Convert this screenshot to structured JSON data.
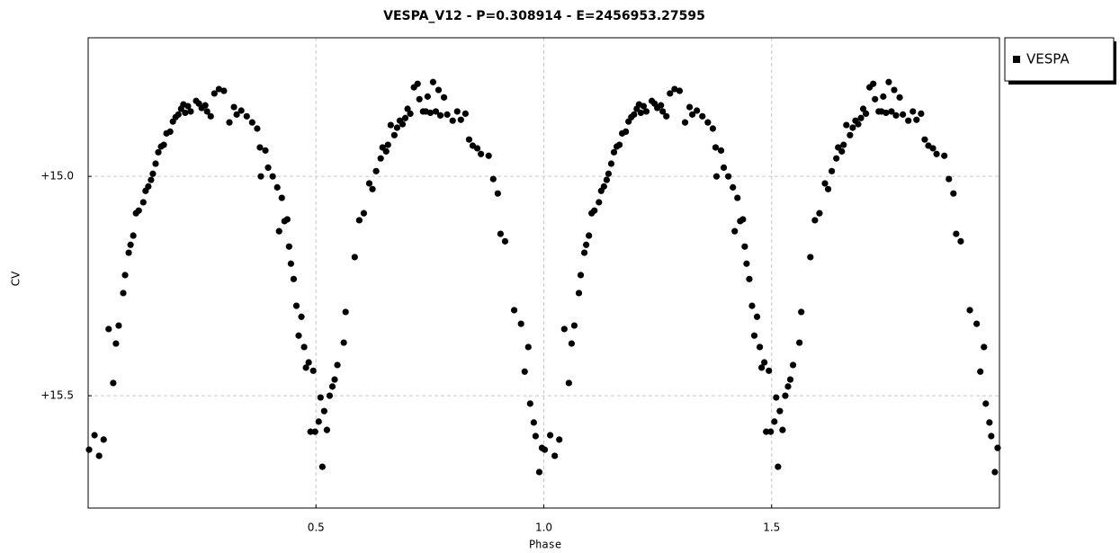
{
  "chart_data": {
    "type": "scatter",
    "title": "VESPA_V12  -  P=0.308914  -  E=2456953.27595",
    "xlabel": "Phase",
    "ylabel": "CV",
    "xlim": [
      0,
      2
    ],
    "ylim": [
      15.756,
      14.684
    ],
    "xticks": [
      0.5,
      {
        "value": 1,
        "label": "1.0"
      },
      1.5
    ],
    "yticks": [
      {
        "value": 15,
        "label": "+15.0"
      },
      {
        "value": 15.5,
        "label": "+15.5"
      }
    ],
    "grid": true,
    "legend": "right",
    "series": [
      {
        "name": "VESPA",
        "color": "#000000",
        "x": [
          0.002,
          0.014,
          0.024,
          0.034,
          0.045,
          0.055,
          0.061,
          0.067,
          0.077,
          0.081,
          0.089,
          0.093,
          0.099,
          0.105,
          0.111,
          0.121,
          0.126,
          0.132,
          0.138,
          0.142,
          0.148,
          0.154,
          0.16,
          0.166,
          0.172,
          0.18,
          0.186,
          0.192,
          0.198,
          0.204,
          0.209,
          0.213,
          0.219,
          0.225,
          0.237,
          0.243,
          0.249,
          0.257,
          0.261,
          0.269,
          0.277,
          0.287,
          0.298,
          0.31,
          0.32,
          0.326,
          0.336,
          0.348,
          0.36,
          0.371,
          0.377,
          0.379,
          0.389,
          0.395,
          0.405,
          0.415,
          0.419,
          0.425,
          0.431,
          0.437,
          0.441,
          0.445,
          0.451,
          0.457,
          0.462,
          0.468,
          0.474,
          0.478,
          0.484,
          0.488,
          0.494,
          0.498,
          0.506,
          0.51,
          0.514,
          0.518,
          0.524,
          0.53,
          0.536,
          0.541,
          0.547,
          0.561,
          0.565,
          0.585,
          0.595,
          0.605,
          0.617,
          0.624,
          0.632,
          0.642,
          0.646,
          0.654,
          0.658,
          0.664,
          0.672,
          0.678,
          0.684,
          0.69,
          0.696,
          0.701,
          0.707,
          0.715,
          0.723,
          0.727,
          0.735,
          0.741,
          0.745,
          0.751,
          0.757,
          0.763,
          0.769,
          0.773,
          0.781,
          0.788,
          0.8,
          0.81,
          0.818,
          0.828,
          0.836,
          0.844,
          0.854,
          0.862,
          0.879,
          0.889,
          0.899,
          0.905,
          0.915,
          0.935,
          0.95,
          0.958,
          0.966,
          0.97,
          0.978,
          0.982,
          0.99,
          0.996,
          1.002,
          1.014,
          1.024,
          1.034,
          1.045,
          1.055,
          1.061,
          1.067,
          1.077,
          1.081,
          1.089,
          1.093,
          1.099,
          1.105,
          1.111,
          1.121,
          1.126,
          1.132,
          1.138,
          1.142,
          1.148,
          1.154,
          1.16,
          1.166,
          1.172,
          1.18,
          1.186,
          1.192,
          1.198,
          1.204,
          1.209,
          1.213,
          1.219,
          1.225,
          1.237,
          1.243,
          1.249,
          1.257,
          1.261,
          1.269,
          1.277,
          1.287,
          1.298,
          1.31,
          1.32,
          1.326,
          1.336,
          1.348,
          1.36,
          1.371,
          1.377,
          1.379,
          1.389,
          1.395,
          1.405,
          1.415,
          1.419,
          1.425,
          1.431,
          1.437,
          1.441,
          1.445,
          1.451,
          1.457,
          1.462,
          1.468,
          1.474,
          1.478,
          1.484,
          1.488,
          1.494,
          1.498,
          1.506,
          1.51,
          1.514,
          1.518,
          1.524,
          1.53,
          1.536,
          1.541,
          1.547,
          1.561,
          1.565,
          1.585,
          1.595,
          1.605,
          1.617,
          1.624,
          1.632,
          1.642,
          1.646,
          1.654,
          1.658,
          1.664,
          1.672,
          1.678,
          1.684,
          1.69,
          1.696,
          1.701,
          1.707,
          1.715,
          1.723,
          1.727,
          1.735,
          1.741,
          1.745,
          1.751,
          1.757,
          1.763,
          1.769,
          1.773,
          1.781,
          1.788,
          1.8,
          1.81,
          1.818,
          1.828,
          1.836,
          1.844,
          1.854,
          1.862,
          1.879,
          1.889,
          1.899,
          1.905,
          1.915,
          1.935,
          1.95,
          1.958,
          1.966,
          1.97,
          1.978,
          1.982,
          1.99,
          1.996
        ],
        "y": [
          15.623,
          15.59,
          15.637,
          15.6,
          15.348,
          15.471,
          15.381,
          15.34,
          15.266,
          15.225,
          15.174,
          15.156,
          15.135,
          15.084,
          15.078,
          15.059,
          15.033,
          15.023,
          15.008,
          14.994,
          14.971,
          14.945,
          14.932,
          14.928,
          14.902,
          14.898,
          14.875,
          14.865,
          14.859,
          14.846,
          14.836,
          14.855,
          14.84,
          14.852,
          14.828,
          14.834,
          14.844,
          14.838,
          14.852,
          14.863,
          14.811,
          14.801,
          14.805,
          14.877,
          14.842,
          14.859,
          14.85,
          14.863,
          14.877,
          14.891,
          14.934,
          15.0,
          14.941,
          14.98,
          15.0,
          15.025,
          15.125,
          15.049,
          15.102,
          15.098,
          15.16,
          15.199,
          15.234,
          15.295,
          15.363,
          15.32,
          15.389,
          15.436,
          15.424,
          15.582,
          15.443,
          15.582,
          15.559,
          15.504,
          15.662,
          15.535,
          15.578,
          15.5,
          15.479,
          15.463,
          15.43,
          15.379,
          15.309,
          15.184,
          15.1,
          15.084,
          15.016,
          15.029,
          14.988,
          14.959,
          14.934,
          14.943,
          14.928,
          14.883,
          14.906,
          14.889,
          14.873,
          14.881,
          14.867,
          14.846,
          14.857,
          14.797,
          14.789,
          14.824,
          14.852,
          14.852,
          14.818,
          14.855,
          14.785,
          14.852,
          14.803,
          14.861,
          14.82,
          14.859,
          14.873,
          14.852,
          14.871,
          14.857,
          14.916,
          14.93,
          14.936,
          14.949,
          14.953,
          15.006,
          15.039,
          15.131,
          15.148,
          15.305,
          15.336,
          15.445,
          15.389,
          15.518,
          15.561,
          15.592,
          15.674,
          15.619,
          15.623,
          15.59,
          15.637,
          15.6,
          15.348,
          15.471,
          15.381,
          15.34,
          15.266,
          15.225,
          15.174,
          15.156,
          15.135,
          15.084,
          15.078,
          15.059,
          15.033,
          15.023,
          15.008,
          14.994,
          14.971,
          14.945,
          14.932,
          14.928,
          14.902,
          14.898,
          14.875,
          14.865,
          14.859,
          14.846,
          14.836,
          14.855,
          14.84,
          14.852,
          14.828,
          14.834,
          14.844,
          14.838,
          14.852,
          14.863,
          14.811,
          14.801,
          14.805,
          14.877,
          14.842,
          14.859,
          14.85,
          14.863,
          14.877,
          14.891,
          14.934,
          15.0,
          14.941,
          14.98,
          15.0,
          15.025,
          15.125,
          15.049,
          15.102,
          15.098,
          15.16,
          15.199,
          15.234,
          15.295,
          15.363,
          15.32,
          15.389,
          15.436,
          15.424,
          15.582,
          15.443,
          15.582,
          15.559,
          15.504,
          15.662,
          15.535,
          15.578,
          15.5,
          15.479,
          15.463,
          15.43,
          15.379,
          15.309,
          15.184,
          15.1,
          15.084,
          15.016,
          15.029,
          14.988,
          14.959,
          14.934,
          14.943,
          14.928,
          14.883,
          14.906,
          14.889,
          14.873,
          14.881,
          14.867,
          14.846,
          14.857,
          14.797,
          14.789,
          14.824,
          14.852,
          14.852,
          14.818,
          14.855,
          14.785,
          14.852,
          14.803,
          14.861,
          14.82,
          14.859,
          14.873,
          14.852,
          14.871,
          14.857,
          14.916,
          14.93,
          14.936,
          14.949,
          14.953,
          15.006,
          15.039,
          15.131,
          15.148,
          15.305,
          15.336,
          15.445,
          15.389,
          15.518,
          15.561,
          15.592,
          15.674,
          15.619
        ]
      }
    ]
  }
}
